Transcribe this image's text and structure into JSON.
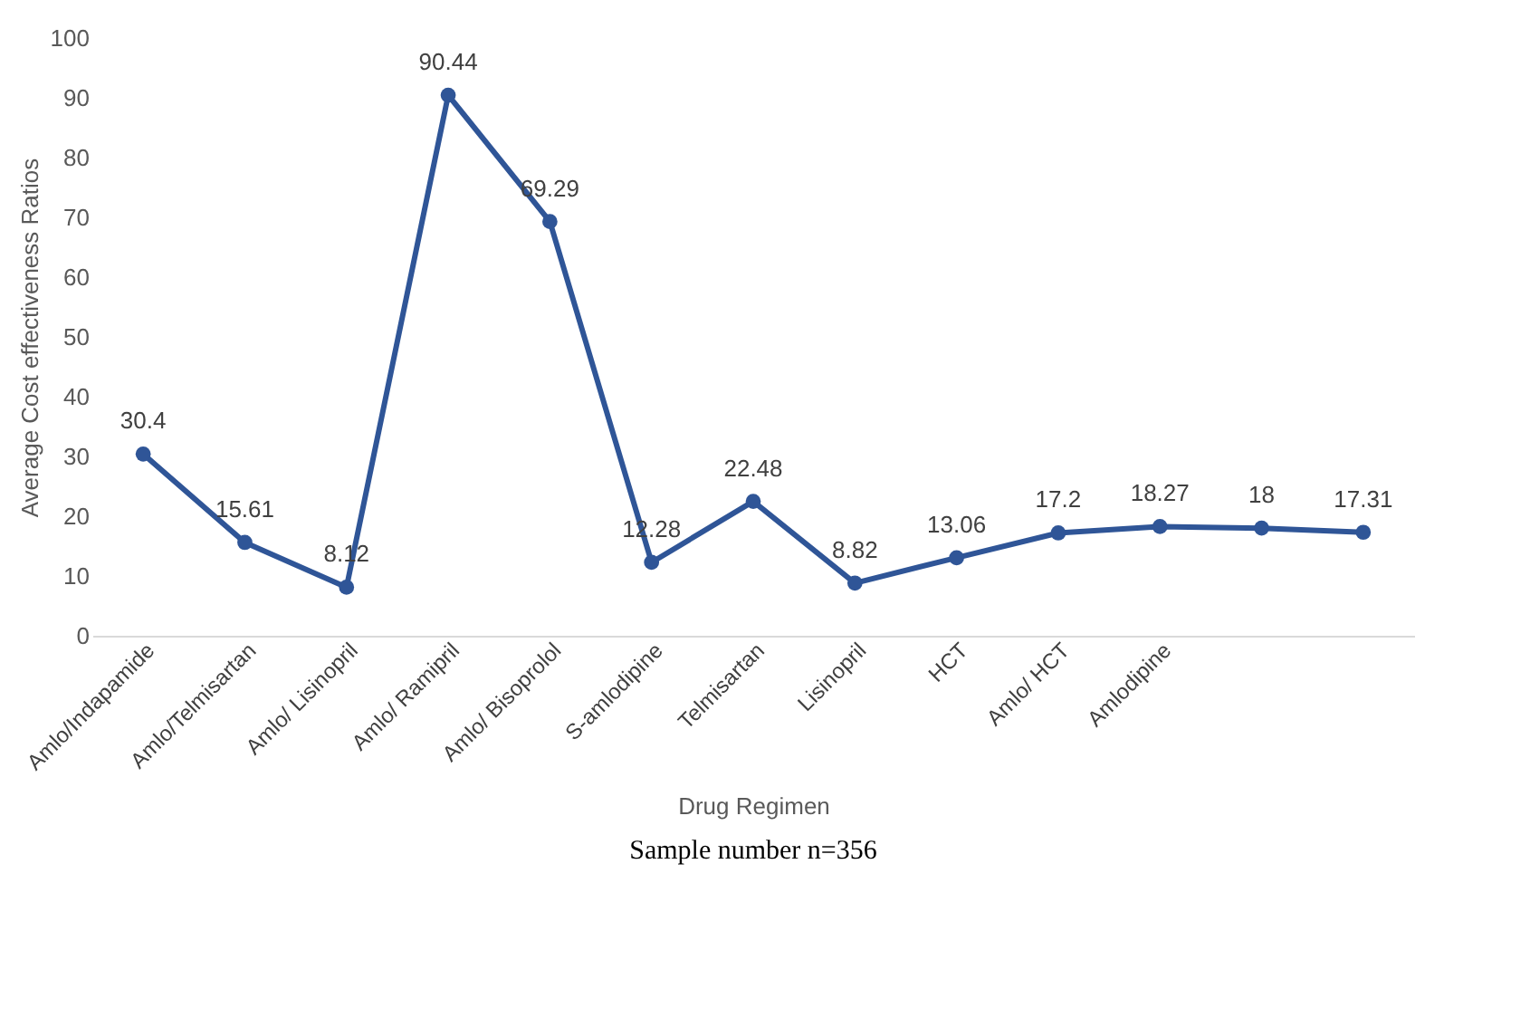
{
  "chart_data": {
    "type": "line",
    "xlabel": "Drug Regimen",
    "ylabel": "Average Cost effectiveness Ratios",
    "categories": [
      "Amlo/Indapamide",
      "Amlo/Telmisartan",
      "Amlo/ Lisinopril",
      "Amlo/ Ramipril",
      "Amlo/ Bisoprolol",
      "S-amlodipine",
      "Telmisartan",
      "Lisinopril",
      "HCT",
      "Amlo/ HCT",
      "Amlodipine",
      null,
      null
    ],
    "series": [
      {
        "color": "#2f5597",
        "values": [
          30.4,
          15.61,
          8.12,
          90.44,
          69.29,
          12.28,
          22.48,
          8.82,
          13.06,
          17.2,
          18.27,
          18,
          17.31
        ]
      }
    ],
    "ylim": [
      0,
      100
    ],
    "yticks": [
      0,
      10,
      20,
      30,
      40,
      50,
      60,
      70,
      80,
      90,
      100
    ],
    "data_labels": true,
    "marker": "circle",
    "line_style": "solid",
    "grid": false,
    "annotations": [
      "Sample number n=356"
    ]
  }
}
